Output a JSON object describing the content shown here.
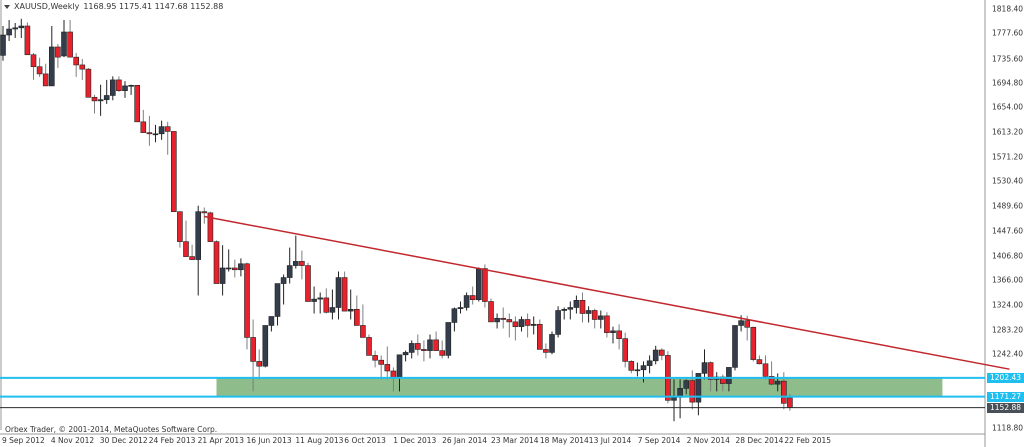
{
  "header": {
    "symbol": "XAUUSD,Weekly",
    "ohlc": "1168.95 1175.41 1147.68 1152.88"
  },
  "footer": {
    "copyright": "Orbex Trader, © 2001-2014, MetaQuotes Software Corp."
  },
  "colors": {
    "bull": "#333d4b",
    "bear": "#e8222d",
    "wick_bull": "#222222",
    "wick_bear": "#7f7f7f",
    "trendline": "#c1272d",
    "zone_fill": "#8fbc8b",
    "zone_line": "#1fbff0",
    "price_line": "#2b2b2b",
    "axis": "#999999"
  },
  "chart_data": {
    "type": "candlestick",
    "title": "XAUUSD,Weekly",
    "xlabel": "",
    "ylabel": "",
    "ylim": [
      1100.0,
      1830.0
    ],
    "grid": false,
    "y_ticks": [
      "1818.40",
      "1777.60",
      "1735.60",
      "1694.80",
      "1654.00",
      "1613.20",
      "1571.20",
      "1530.40",
      "1489.60",
      "1447.60",
      "1406.80",
      "1366.00",
      "1324.00",
      "1283.20",
      "1242.40",
      "1118.80"
    ],
    "x_ticks": [
      "9 Sep 2012",
      "4 Nov 2012",
      "30 Dec 2012",
      "24 Feb 2013",
      "21 Apr 2013",
      "16 Jun 2013",
      "11 Aug 2013",
      "6 Oct 2013",
      "1 Dec 2013",
      "26 Jan 2014",
      "23 Mar 2014",
      "18 May 2014",
      "13 Jul 2014",
      "7 Sep 2014",
      "2 Nov 2014",
      "28 Dec 2014",
      "22 Feb 2015"
    ],
    "horizontal_levels": [
      {
        "label": "1202.43",
        "value": 1202.43,
        "kind": "zone_top"
      },
      {
        "label": "1171.27",
        "value": 1171.27,
        "kind": "zone_bottom"
      },
      {
        "label": "1152.88",
        "value": 1152.88,
        "kind": "current_price"
      }
    ],
    "zone": {
      "from_week": 35,
      "to_week": 154,
      "top": 1202.43,
      "bottom": 1171.27
    },
    "trendline": {
      "start": {
        "week": 33,
        "price": 1472
      },
      "end": {
        "week": 165,
        "price": 1217
      }
    },
    "candles": [
      [
        1741,
        1790,
        1732,
        1775
      ],
      [
        1775,
        1800,
        1765,
        1785
      ],
      [
        1785,
        1795,
        1770,
        1787
      ],
      [
        1787,
        1802,
        1770,
        1790
      ],
      [
        1790,
        1796,
        1760,
        1742
      ],
      [
        1742,
        1745,
        1700,
        1722
      ],
      [
        1722,
        1737,
        1705,
        1710
      ],
      [
        1710,
        1727,
        1690,
        1690
      ],
      [
        1690,
        1790,
        1690,
        1755
      ],
      [
        1755,
        1760,
        1720,
        1738
      ],
      [
        1740,
        1800,
        1738,
        1780
      ],
      [
        1780,
        1800,
        1740,
        1738
      ],
      [
        1738,
        1745,
        1705,
        1725
      ],
      [
        1725,
        1735,
        1700,
        1718
      ],
      [
        1718,
        1720,
        1680,
        1671
      ],
      [
        1671,
        1675,
        1644,
        1665
      ],
      [
        1665,
        1692,
        1640,
        1667
      ],
      [
        1667,
        1700,
        1660,
        1674
      ],
      [
        1674,
        1706,
        1666,
        1700
      ],
      [
        1700,
        1706,
        1680,
        1682
      ],
      [
        1682,
        1698,
        1670,
        1690
      ],
      [
        1690,
        1692,
        1675,
        1691
      ],
      [
        1691,
        1690,
        1664,
        1630
      ],
      [
        1630,
        1650,
        1612,
        1612
      ],
      [
        1612,
        1640,
        1590,
        1610
      ],
      [
        1610,
        1625,
        1596,
        1610
      ],
      [
        1610,
        1632,
        1600,
        1622
      ],
      [
        1622,
        1630,
        1575,
        1614
      ],
      [
        1614,
        1570,
        1570,
        1480
      ],
      [
        1480,
        1475,
        1420,
        1430
      ],
      [
        1430,
        1465,
        1405,
        1405
      ],
      [
        1405,
        1425,
        1400,
        1400
      ],
      [
        1400,
        1490,
        1340,
        1480
      ],
      [
        1480,
        1487,
        1460,
        1478
      ],
      [
        1478,
        1480,
        1430,
        1430
      ],
      [
        1430,
        1432,
        1360,
        1360
      ],
      [
        1360,
        1424,
        1340,
        1386
      ],
      [
        1386,
        1417,
        1380,
        1386
      ],
      [
        1386,
        1400,
        1370,
        1383
      ],
      [
        1383,
        1402,
        1372,
        1393
      ],
      [
        1393,
        1395,
        1250,
        1270
      ],
      [
        1270,
        1300,
        1180,
        1230
      ],
      [
        1230,
        1250,
        1200,
        1222
      ],
      [
        1222,
        1270,
        1220,
        1290
      ],
      [
        1290,
        1305,
        1280,
        1305
      ],
      [
        1305,
        1350,
        1290,
        1360
      ],
      [
        1360,
        1375,
        1325,
        1370
      ],
      [
        1370,
        1420,
        1360,
        1390
      ],
      [
        1390,
        1440,
        1385,
        1397
      ],
      [
        1397,
        1415,
        1367,
        1390
      ],
      [
        1390,
        1395,
        1330,
        1330
      ],
      [
        1330,
        1355,
        1310,
        1334
      ],
      [
        1334,
        1345,
        1310,
        1336
      ],
      [
        1336,
        1352,
        1310,
        1312
      ],
      [
        1312,
        1350,
        1300,
        1320
      ],
      [
        1320,
        1380,
        1300,
        1370
      ],
      [
        1370,
        1380,
        1320,
        1314
      ],
      [
        1314,
        1350,
        1300,
        1317
      ],
      [
        1317,
        1340,
        1290,
        1290
      ],
      [
        1290,
        1325,
        1270,
        1270
      ],
      [
        1270,
        1275,
        1250,
        1240
      ],
      [
        1240,
        1248,
        1220,
        1232
      ],
      [
        1232,
        1240,
        1200,
        1225
      ],
      [
        1225,
        1255,
        1200,
        1214
      ],
      [
        1214,
        1220,
        1180,
        1202
      ],
      [
        1202,
        1240,
        1180,
        1241
      ],
      [
        1241,
        1248,
        1230,
        1245
      ],
      [
        1245,
        1265,
        1235,
        1260
      ],
      [
        1260,
        1275,
        1240,
        1250
      ],
      [
        1250,
        1265,
        1230,
        1248
      ],
      [
        1248,
        1275,
        1235,
        1266
      ],
      [
        1266,
        1280,
        1250,
        1248
      ],
      [
        1248,
        1265,
        1235,
        1240
      ],
      [
        1240,
        1295,
        1235,
        1295
      ],
      [
        1295,
        1320,
        1280,
        1318
      ],
      [
        1318,
        1330,
        1310,
        1320
      ],
      [
        1320,
        1345,
        1315,
        1340
      ],
      [
        1340,
        1355,
        1325,
        1333
      ],
      [
        1333,
        1387,
        1330,
        1385
      ],
      [
        1385,
        1392,
        1320,
        1330
      ],
      [
        1330,
        1335,
        1300,
        1296
      ],
      [
        1296,
        1310,
        1285,
        1302
      ],
      [
        1302,
        1320,
        1285,
        1300
      ],
      [
        1300,
        1310,
        1270,
        1296
      ],
      [
        1296,
        1305,
        1265,
        1288
      ],
      [
        1288,
        1305,
        1280,
        1300
      ],
      [
        1300,
        1310,
        1270,
        1290
      ],
      [
        1290,
        1305,
        1275,
        1292
      ],
      [
        1292,
        1300,
        1255,
        1250
      ],
      [
        1250,
        1260,
        1235,
        1245
      ],
      [
        1245,
        1280,
        1242,
        1275
      ],
      [
        1275,
        1322,
        1270,
        1315
      ],
      [
        1315,
        1320,
        1300,
        1317
      ],
      [
        1317,
        1330,
        1300,
        1320
      ],
      [
        1320,
        1340,
        1310,
        1332
      ],
      [
        1332,
        1345,
        1295,
        1310
      ],
      [
        1310,
        1322,
        1295,
        1315
      ],
      [
        1315,
        1318,
        1285,
        1300
      ],
      [
        1300,
        1315,
        1285,
        1306
      ],
      [
        1306,
        1312,
        1270,
        1278
      ],
      [
        1278,
        1288,
        1260,
        1281
      ],
      [
        1281,
        1292,
        1250,
        1268
      ],
      [
        1268,
        1278,
        1220,
        1230
      ],
      [
        1230,
        1232,
        1210,
        1215
      ],
      [
        1215,
        1228,
        1205,
        1216
      ],
      [
        1216,
        1230,
        1195,
        1223
      ],
      [
        1223,
        1240,
        1210,
        1231
      ],
      [
        1231,
        1256,
        1225,
        1249
      ],
      [
        1249,
        1252,
        1232,
        1240
      ],
      [
        1240,
        1247,
        1160,
        1165
      ],
      [
        1165,
        1200,
        1130,
        1170
      ],
      [
        1170,
        1200,
        1135,
        1185
      ],
      [
        1185,
        1200,
        1175,
        1198
      ],
      [
        1198,
        1215,
        1150,
        1162
      ],
      [
        1162,
        1200,
        1140,
        1210
      ],
      [
        1210,
        1250,
        1200,
        1228
      ],
      [
        1228,
        1230,
        1180,
        1200
      ],
      [
        1200,
        1212,
        1180,
        1204
      ],
      [
        1204,
        1208,
        1180,
        1193
      ],
      [
        1193,
        1215,
        1180,
        1220
      ],
      [
        1220,
        1280,
        1215,
        1290
      ],
      [
        1290,
        1307,
        1280,
        1298
      ],
      [
        1298,
        1306,
        1265,
        1287
      ],
      [
        1287,
        1288,
        1230,
        1233
      ],
      [
        1233,
        1240,
        1225,
        1226
      ],
      [
        1226,
        1240,
        1200,
        1205
      ],
      [
        1205,
        1230,
        1190,
        1192
      ],
      [
        1192,
        1210,
        1180,
        1197
      ],
      [
        1197,
        1212,
        1150,
        1160
      ],
      [
        1168.95,
        1175.41,
        1147.68,
        1152.88
      ]
    ],
    "candle_format": [
      "open",
      "high",
      "low",
      "close"
    ]
  }
}
